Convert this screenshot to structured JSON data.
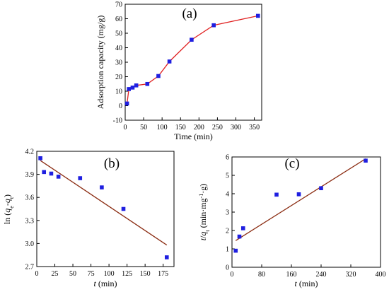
{
  "chart_data": [
    {
      "type": "line",
      "panel_label": "(a)",
      "xlabel": "Time (min)",
      "ylabel": "Adsorption capacity (mg/g)",
      "xlim": [
        0,
        370
      ],
      "ylim": [
        -10,
        70
      ],
      "xticks": [
        "0",
        "50",
        "100",
        "150",
        "200",
        "250",
        "300",
        "350"
      ],
      "yticks": [
        "-10",
        "0",
        "10",
        "20",
        "30",
        "40",
        "50",
        "60",
        "70"
      ],
      "series": [
        {
          "marker_color": "#1f1fe0",
          "line_color": "#e02020",
          "x": [
            5,
            10,
            20,
            30,
            60,
            90,
            120,
            180,
            240,
            360
          ],
          "y": [
            1.5,
            11.5,
            12.5,
            14,
            15,
            20.5,
            30.5,
            45.5,
            55.5,
            62
          ]
        }
      ]
    },
    {
      "type": "scatter",
      "panel_label": "(b)",
      "xlabel": "t (min)",
      "ylabel": "ln (qe-qt)",
      "xlim": [
        0,
        190
      ],
      "ylim": [
        2.7,
        4.2
      ],
      "xticks": [
        "0",
        "25",
        "50",
        "75",
        "100",
        "125",
        "150",
        "175"
      ],
      "yticks": [
        "2.7",
        "3.0",
        "3.3",
        "3.6",
        "3.9",
        "4.2"
      ],
      "series": [
        {
          "marker_color": "#1f1fe0",
          "x": [
            5,
            10,
            20,
            30,
            60,
            90,
            120,
            180
          ],
          "y": [
            4.11,
            3.93,
            3.91,
            3.87,
            3.85,
            3.73,
            3.45,
            2.82
          ]
        }
      ],
      "fit_line": {
        "color": "#8b2c12",
        "x": [
          5,
          180
        ],
        "y": [
          4.08,
          2.98
        ]
      }
    },
    {
      "type": "scatter",
      "panel_label": "(c)",
      "xlabel": "t (min)",
      "ylabel": "t/qt (min·mg-1·g)",
      "xlim": [
        0,
        400
      ],
      "ylim": [
        0,
        6
      ],
      "xticks": [
        "0",
        "80",
        "160",
        "240",
        "320",
        "400"
      ],
      "yticks": [
        "0",
        "1",
        "2",
        "3",
        "4",
        "5",
        "6"
      ],
      "series": [
        {
          "marker_color": "#1f1fe0",
          "x": [
            10,
            20,
            30,
            120,
            180,
            240,
            360
          ],
          "y": [
            0.9,
            1.67,
            2.12,
            3.95,
            3.97,
            4.3,
            5.8
          ]
        }
      ],
      "fit_line": {
        "color": "#8b2c12",
        "x": [
          10,
          360
        ],
        "y": [
          1.45,
          5.9
        ]
      }
    }
  ]
}
